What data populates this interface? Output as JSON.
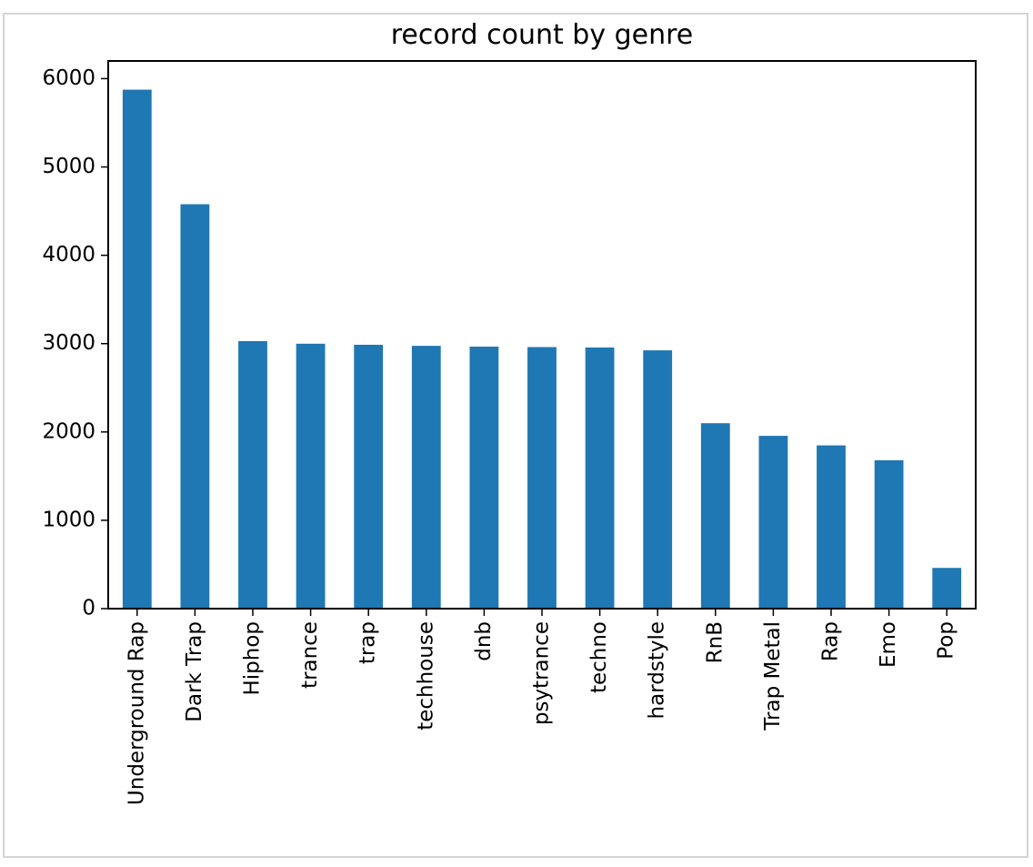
{
  "chart_data": {
    "type": "bar",
    "title": "record count by genre",
    "xlabel": "",
    "ylabel": "",
    "categories": [
      "Underground Rap",
      "Dark Trap",
      "Hiphop",
      "trance",
      "trap",
      "techhouse",
      "dnb",
      "psytrance",
      "techno",
      "hardstyle",
      "RnB",
      "Trap Metal",
      "Rap",
      "Emo",
      "Pop"
    ],
    "values": [
      5875,
      4578,
      3028,
      2999,
      2987,
      2975,
      2966,
      2961,
      2956,
      2924,
      2099,
      1956,
      1848,
      1680,
      461
    ],
    "ylim": [
      0,
      6200
    ],
    "yticks": [
      0,
      1000,
      2000,
      3000,
      4000,
      5000,
      6000
    ],
    "bar_color": "#1f77b4",
    "grid": false,
    "legend": "none"
  }
}
